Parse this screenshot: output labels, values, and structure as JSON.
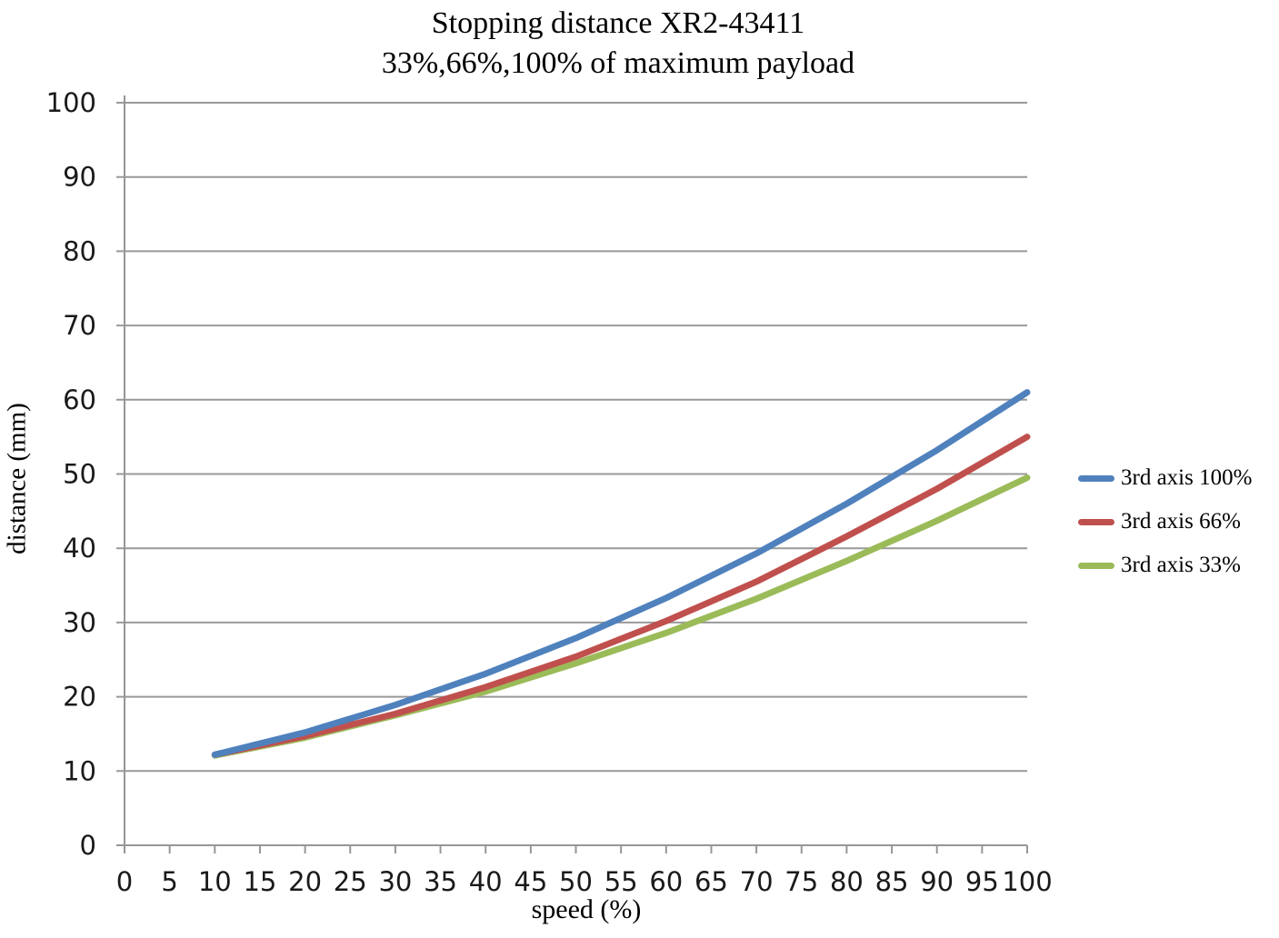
{
  "chart_data": {
    "type": "line",
    "title": "Stopping distance XR2-43411",
    "subtitle": "33%,66%,100% of maximum payload",
    "xlabel": "speed (%)",
    "ylabel": "distance (mm)",
    "xlim": [
      0,
      100
    ],
    "ylim": [
      0,
      100
    ],
    "x_ticks": [
      0,
      5,
      10,
      15,
      20,
      25,
      30,
      35,
      40,
      45,
      50,
      55,
      60,
      65,
      70,
      75,
      80,
      85,
      90,
      95,
      100
    ],
    "y_ticks": [
      0,
      10,
      20,
      30,
      40,
      50,
      60,
      70,
      80,
      90,
      100
    ],
    "grid": "horizontal gridlines at every 10 mm",
    "legend_position": "right",
    "x": [
      10,
      20,
      30,
      40,
      50,
      60,
      70,
      80,
      90,
      100
    ],
    "series": [
      {
        "name": "3rd axis 100%",
        "color": "#4F81BD",
        "values": [
          12.2,
          15.2,
          18.9,
          23.1,
          27.9,
          33.3,
          39.3,
          46.0,
          53.2,
          61.0
        ]
      },
      {
        "name": "3rd axis 66%",
        "color": "#C0504D",
        "values": [
          12.2,
          14.7,
          17.7,
          21.3,
          25.4,
          30.2,
          35.5,
          41.6,
          48.0,
          55.0
        ]
      },
      {
        "name": "3rd axis 33%",
        "color": "#9BBB59",
        "values": [
          12.1,
          14.5,
          17.5,
          20.7,
          24.5,
          28.6,
          33.2,
          38.3,
          43.7,
          49.5
        ]
      }
    ],
    "axis_color": "#969696",
    "grid_color": "#999999",
    "tick_label_color": "#1a1a1a",
    "line_width": 7
  }
}
